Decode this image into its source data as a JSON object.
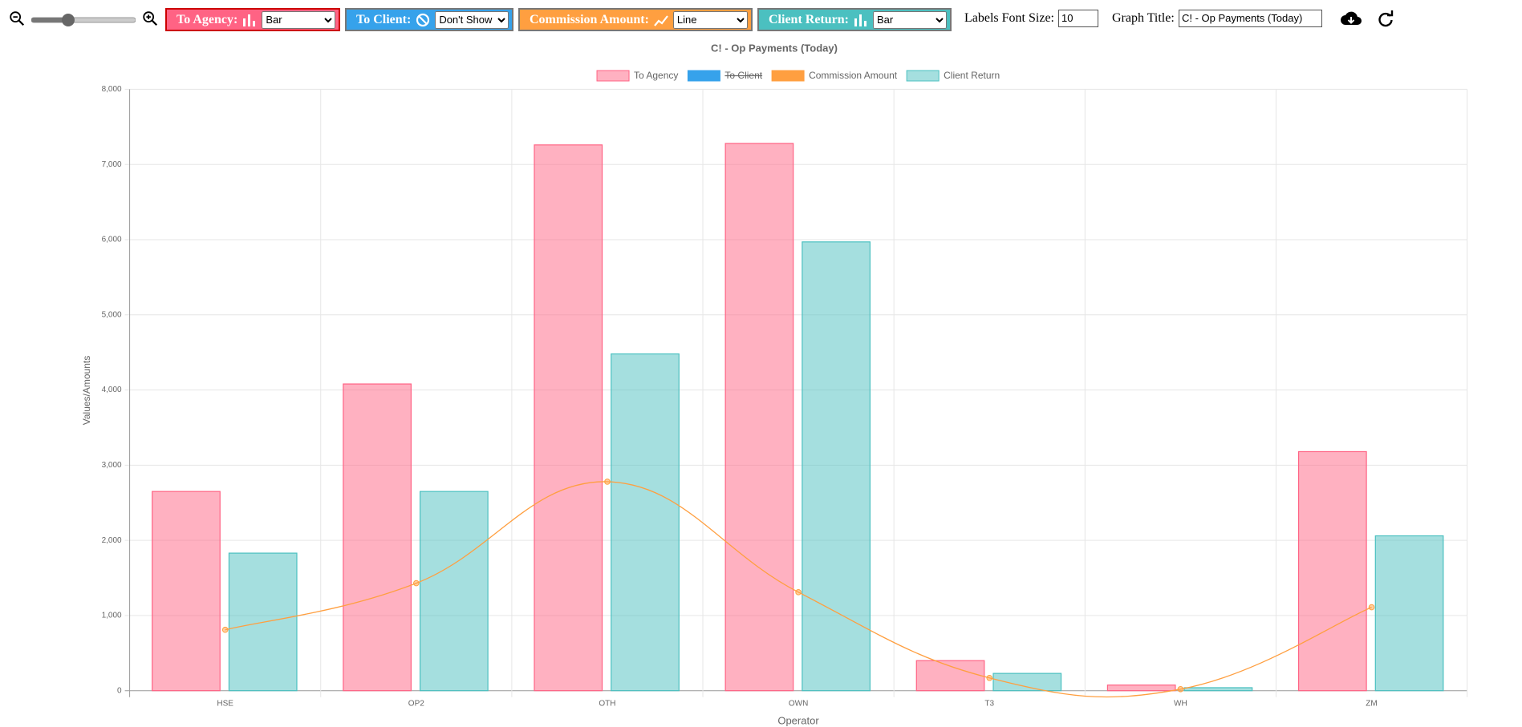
{
  "toolbar": {
    "controls": [
      {
        "label": "To Agency:",
        "selected": "Bar",
        "color": "#ff6384",
        "icon": "bar"
      },
      {
        "label": "To Client:",
        "selected": "Don't Show",
        "color": "#36a2eb",
        "icon": "ban"
      },
      {
        "label": "Commission Amount:",
        "selected": "Line",
        "color": "#ff9f40",
        "icon": "line"
      },
      {
        "label": "Client Return:",
        "selected": "Bar",
        "color": "#4bc0c0",
        "icon": "bar"
      }
    ],
    "font_size_label": "Labels Font Size:",
    "font_size": "10",
    "graph_title_label": "Graph Title:",
    "graph_title": "C! - Op Payments (Today)"
  },
  "chart_data": {
    "type": "bar",
    "title": "C! - Op Payments (Today)",
    "x_label": "Operator",
    "y_label": "Values/Amounts",
    "categories": [
      "HSE",
      "OP2",
      "OTH",
      "OWN",
      "T3",
      "WH",
      "ZM"
    ],
    "series": [
      {
        "name": "To Agency",
        "type": "bar",
        "color": "#ff6384",
        "values": [
          2650,
          4080,
          7260,
          7280,
          400,
          75,
          3180
        ]
      },
      {
        "name": "To Client",
        "type": "bar",
        "color": "#36a2eb",
        "hidden": true
      },
      {
        "name": "Commission Amount",
        "type": "line",
        "color": "#ff9f40",
        "values": [
          810,
          1430,
          2780,
          1310,
          170,
          20,
          1110
        ]
      },
      {
        "name": "Client Return",
        "type": "bar",
        "color": "#4bc0c0",
        "values": [
          1830,
          2650,
          4480,
          5970,
          230,
          40,
          2060
        ]
      }
    ],
    "ylim": [
      0,
      8000
    ],
    "yticks": [
      0,
      {
        "value": 1000,
        "label": "1,000"
      },
      {
        "value": 2000,
        "label": "2,000"
      },
      {
        "value": 3000,
        "label": "3,000"
      },
      {
        "value": 4000,
        "label": "4,000"
      },
      {
        "value": 5000,
        "label": "5,000"
      },
      {
        "value": 6000,
        "label": "6,000"
      },
      {
        "value": 7000,
        "label": "7,000"
      },
      {
        "value": 8000,
        "label": "8,000"
      }
    ],
    "grid": true,
    "legend": "top"
  }
}
